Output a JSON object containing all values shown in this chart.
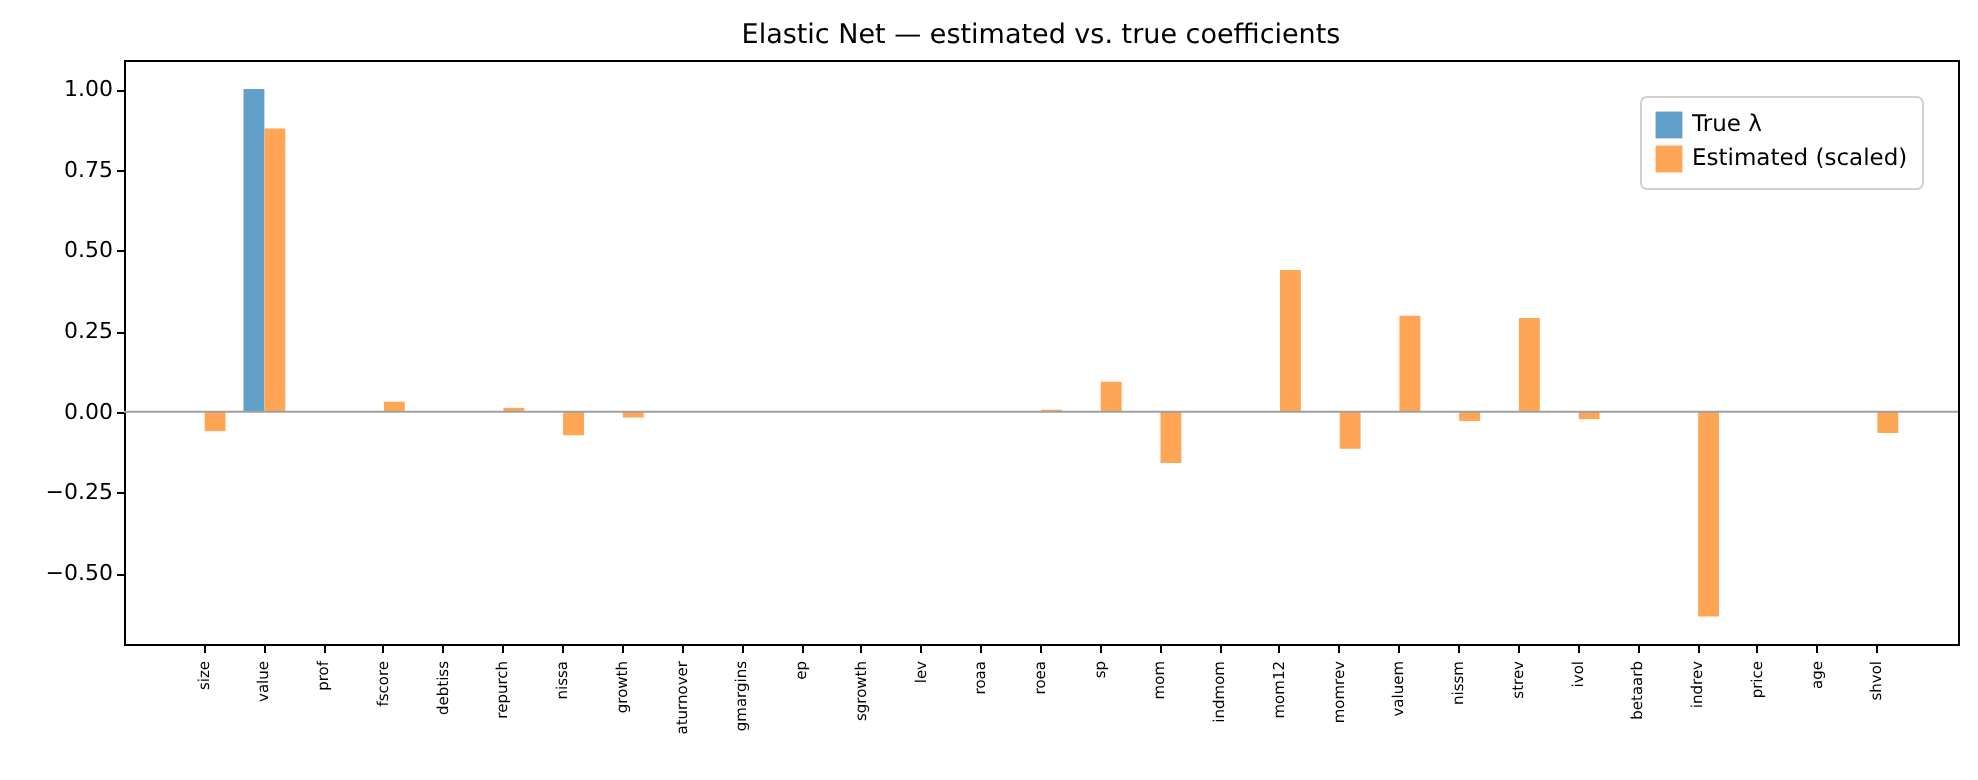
{
  "chart_data": {
    "type": "bar",
    "title": "Elastic Net — estimated vs. true coefficients",
    "categories": [
      "size",
      "value",
      "prof",
      "fscore",
      "debtiss",
      "repurch",
      "nissa",
      "growth",
      "aturnover",
      "gmargins",
      "ep",
      "sgrowth",
      "lev",
      "roaa",
      "roea",
      "sp",
      "mom",
      "indmom",
      "mom12",
      "momrev",
      "valuem",
      "nissm",
      "strev",
      "ivol",
      "betaarb",
      "indrev",
      "price",
      "age",
      "shvol"
    ],
    "series": [
      {
        "name": "True λ",
        "color": "#62a0ca",
        "values": [
          0,
          1.0,
          0,
          0,
          0,
          0,
          0,
          0,
          0,
          0,
          0,
          0,
          0,
          0,
          0,
          0,
          0,
          0,
          0,
          0,
          0,
          0,
          0,
          0,
          0,
          0,
          0,
          0,
          0
        ]
      },
      {
        "name": "Estimated (scaled)",
        "color": "#ffa556",
        "values": [
          -0.06,
          0.878,
          0,
          0.031,
          0,
          0.012,
          -0.073,
          -0.018,
          0,
          0,
          0,
          0,
          0,
          0,
          0.006,
          0.093,
          -0.159,
          0,
          0.439,
          -0.115,
          0.297,
          -0.029,
          0.29,
          -0.023,
          0,
          -0.635,
          0,
          0,
          -0.066
        ]
      }
    ],
    "ylim": [
      -0.72,
      1.09
    ],
    "yticks": [
      {
        "value": -0.5,
        "label": "−0.50"
      },
      {
        "value": -0.25,
        "label": "−0.25"
      },
      {
        "value": 0,
        "label": "0.00"
      },
      {
        "value": 0.25,
        "label": "0.25"
      },
      {
        "value": 0.5,
        "label": "0.50"
      },
      {
        "value": 0.75,
        "label": "0.75"
      },
      {
        "value": 1,
        "label": "1.00"
      }
    ],
    "ref_lines": [
      {
        "axis": "y",
        "value": 0,
        "color": "#a0a0a0"
      }
    ],
    "grid": false,
    "legend": "top right"
  }
}
